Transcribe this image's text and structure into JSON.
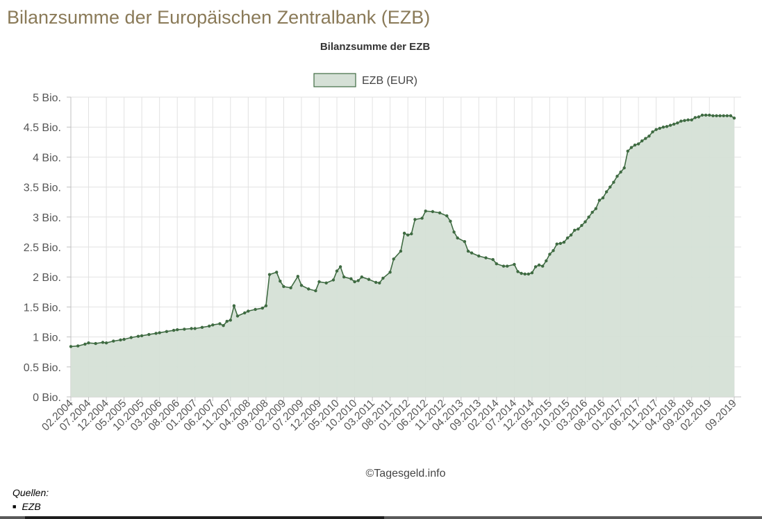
{
  "page": {
    "heading": "Bilanzsumme der Europäischen Zentralbank (EZB)"
  },
  "chart_data": {
    "type": "area",
    "title": "Bilanzsumme der EZB",
    "xlabel": "",
    "ylabel": "",
    "legend": {
      "position": "top-center",
      "entries": [
        "EZB (EUR)"
      ]
    },
    "credit": "©Tagesgeld.info",
    "grid": true,
    "ylim": [
      0,
      5
    ],
    "y_ticks": [
      {
        "value": 0,
        "label": "0 Bio."
      },
      {
        "value": 0.5,
        "label": "0.5 Bio."
      },
      {
        "value": 1,
        "label": "1 Bio."
      },
      {
        "value": 1.5,
        "label": "1.5 Bio."
      },
      {
        "value": 2,
        "label": "2 Bio."
      },
      {
        "value": 2.5,
        "label": "2.5 Bio."
      },
      {
        "value": 3,
        "label": "3 Bio."
      },
      {
        "value": 3.5,
        "label": "3.5 Bio."
      },
      {
        "value": 4,
        "label": "4 Bio."
      },
      {
        "value": 4.5,
        "label": "4.5 Bio."
      },
      {
        "value": 5,
        "label": "5 Bio."
      }
    ],
    "x_ticks": [
      "02.2004",
      "07.2004",
      "12.2004",
      "05.2005",
      "10.2005",
      "03.2006",
      "08.2006",
      "01.2007",
      "06.2007",
      "11.2007",
      "04.2008",
      "09.2008",
      "02.2009",
      "07.2009",
      "12.2009",
      "05.2010",
      "10.2010",
      "03.2011",
      "08.2011",
      "01.2012",
      "06.2012",
      "11.2012",
      "04.2013",
      "09.2013",
      "02.2014",
      "07.2014",
      "12.2014",
      "05.2015",
      "10.2015",
      "03.2016",
      "08.2016",
      "01.2017",
      "06.2017",
      "11.2017",
      "04.2018",
      "09.2018",
      "02.2019",
      "09.2019"
    ],
    "colors": {
      "line": "#3f6b42",
      "fill": "#d5e0d6",
      "grid": "#e2e2e2"
    },
    "series": [
      {
        "name": "EZB (EUR)",
        "points": [
          [
            "02.2004",
            0.84
          ],
          [
            "04.2004",
            0.85
          ],
          [
            "06.2004",
            0.88
          ],
          [
            "07.2004",
            0.9
          ],
          [
            "09.2004",
            0.89
          ],
          [
            "11.2004",
            0.91
          ],
          [
            "12.2004",
            0.9
          ],
          [
            "02.2005",
            0.93
          ],
          [
            "04.2005",
            0.95
          ],
          [
            "05.2005",
            0.96
          ],
          [
            "07.2005",
            0.99
          ],
          [
            "09.2005",
            1.01
          ],
          [
            "10.2005",
            1.02
          ],
          [
            "12.2005",
            1.04
          ],
          [
            "02.2006",
            1.06
          ],
          [
            "03.2006",
            1.07
          ],
          [
            "05.2006",
            1.09
          ],
          [
            "07.2006",
            1.11
          ],
          [
            "08.2006",
            1.12
          ],
          [
            "10.2006",
            1.13
          ],
          [
            "12.2006",
            1.14
          ],
          [
            "01.2007",
            1.14
          ],
          [
            "03.2007",
            1.16
          ],
          [
            "05.2007",
            1.18
          ],
          [
            "06.2007",
            1.2
          ],
          [
            "08.2007",
            1.22
          ],
          [
            "09.2007",
            1.19
          ],
          [
            "10.2007",
            1.26
          ],
          [
            "11.2007",
            1.28
          ],
          [
            "12.2007",
            1.52
          ],
          [
            "01.2008",
            1.35
          ],
          [
            "03.2008",
            1.4
          ],
          [
            "04.2008",
            1.43
          ],
          [
            "06.2008",
            1.46
          ],
          [
            "08.2008",
            1.48
          ],
          [
            "09.2008",
            1.52
          ],
          [
            "10.2008",
            2.04
          ],
          [
            "12.2008",
            2.08
          ],
          [
            "01.2009",
            1.93
          ],
          [
            "02.2009",
            1.84
          ],
          [
            "04.2009",
            1.82
          ],
          [
            "06.2009",
            2.01
          ],
          [
            "07.2009",
            1.86
          ],
          [
            "09.2009",
            1.8
          ],
          [
            "11.2009",
            1.77
          ],
          [
            "12.2009",
            1.92
          ],
          [
            "02.2010",
            1.9
          ],
          [
            "04.2010",
            1.95
          ],
          [
            "05.2010",
            2.1
          ],
          [
            "06.2010",
            2.17
          ],
          [
            "07.2010",
            2.0
          ],
          [
            "09.2010",
            1.97
          ],
          [
            "10.2010",
            1.92
          ],
          [
            "11.2010",
            1.94
          ],
          [
            "12.2010",
            2.0
          ],
          [
            "02.2011",
            1.96
          ],
          [
            "04.2011",
            1.91
          ],
          [
            "05.2011",
            1.9
          ],
          [
            "06.2011",
            1.98
          ],
          [
            "08.2011",
            2.08
          ],
          [
            "09.2011",
            2.3
          ],
          [
            "11.2011",
            2.43
          ],
          [
            "12.2011",
            2.73
          ],
          [
            "01.2012",
            2.7
          ],
          [
            "02.2012",
            2.72
          ],
          [
            "03.2012",
            2.96
          ],
          [
            "05.2012",
            2.98
          ],
          [
            "06.2012",
            3.1
          ],
          [
            "08.2012",
            3.09
          ],
          [
            "10.2012",
            3.07
          ],
          [
            "12.2012",
            3.02
          ],
          [
            "01.2013",
            2.93
          ],
          [
            "02.2013",
            2.75
          ],
          [
            "03.2013",
            2.65
          ],
          [
            "05.2013",
            2.59
          ],
          [
            "06.2013",
            2.43
          ],
          [
            "07.2013",
            2.4
          ],
          [
            "09.2013",
            2.35
          ],
          [
            "11.2013",
            2.32
          ],
          [
            "01.2014",
            2.29
          ],
          [
            "02.2014",
            2.22
          ],
          [
            "04.2014",
            2.18
          ],
          [
            "05.2014",
            2.18
          ],
          [
            "07.2014",
            2.21
          ],
          [
            "08.2014",
            2.09
          ],
          [
            "09.2014",
            2.06
          ],
          [
            "10.2014",
            2.05
          ],
          [
            "11.2014",
            2.05
          ],
          [
            "12.2014",
            2.07
          ],
          [
            "01.2015",
            2.17
          ],
          [
            "02.2015",
            2.2
          ],
          [
            "03.2015",
            2.18
          ],
          [
            "04.2015",
            2.27
          ],
          [
            "05.2015",
            2.38
          ],
          [
            "06.2015",
            2.44
          ],
          [
            "07.2015",
            2.55
          ],
          [
            "08.2015",
            2.56
          ],
          [
            "09.2015",
            2.58
          ],
          [
            "10.2015",
            2.65
          ],
          [
            "11.2015",
            2.7
          ],
          [
            "12.2015",
            2.78
          ],
          [
            "01.2016",
            2.8
          ],
          [
            "02.2016",
            2.86
          ],
          [
            "03.2016",
            2.92
          ],
          [
            "04.2016",
            3.0
          ],
          [
            "05.2016",
            3.08
          ],
          [
            "06.2016",
            3.14
          ],
          [
            "07.2016",
            3.28
          ],
          [
            "08.2016",
            3.32
          ],
          [
            "09.2016",
            3.42
          ],
          [
            "10.2016",
            3.5
          ],
          [
            "11.2016",
            3.58
          ],
          [
            "12.2016",
            3.68
          ],
          [
            "01.2017",
            3.75
          ],
          [
            "02.2017",
            3.82
          ],
          [
            "03.2017",
            4.1
          ],
          [
            "04.2017",
            4.16
          ],
          [
            "05.2017",
            4.2
          ],
          [
            "06.2017",
            4.22
          ],
          [
            "07.2017",
            4.27
          ],
          [
            "08.2017",
            4.31
          ],
          [
            "09.2017",
            4.35
          ],
          [
            "10.2017",
            4.42
          ],
          [
            "11.2017",
            4.46
          ],
          [
            "12.2017",
            4.48
          ],
          [
            "01.2018",
            4.5
          ],
          [
            "02.2018",
            4.51
          ],
          [
            "03.2018",
            4.53
          ],
          [
            "04.2018",
            4.55
          ],
          [
            "05.2018",
            4.57
          ],
          [
            "06.2018",
            4.6
          ],
          [
            "07.2018",
            4.61
          ],
          [
            "08.2018",
            4.62
          ],
          [
            "09.2018",
            4.62
          ],
          [
            "10.2018",
            4.66
          ],
          [
            "11.2018",
            4.67
          ],
          [
            "12.2018",
            4.7
          ],
          [
            "01.2019",
            4.7
          ],
          [
            "02.2019",
            4.7
          ],
          [
            "03.2019",
            4.69
          ],
          [
            "04.2019",
            4.69
          ],
          [
            "05.2019",
            4.69
          ],
          [
            "06.2019",
            4.69
          ],
          [
            "07.2019",
            4.69
          ],
          [
            "08.2019",
            4.69
          ],
          [
            "09.2019",
            4.65
          ]
        ]
      }
    ]
  },
  "sources": {
    "label": "Quellen:",
    "items": [
      "EZB"
    ]
  },
  "footer_rule": {
    "colors": [
      "#5a5a5a",
      "#1e1e1e",
      "#5a5a5a"
    ]
  }
}
